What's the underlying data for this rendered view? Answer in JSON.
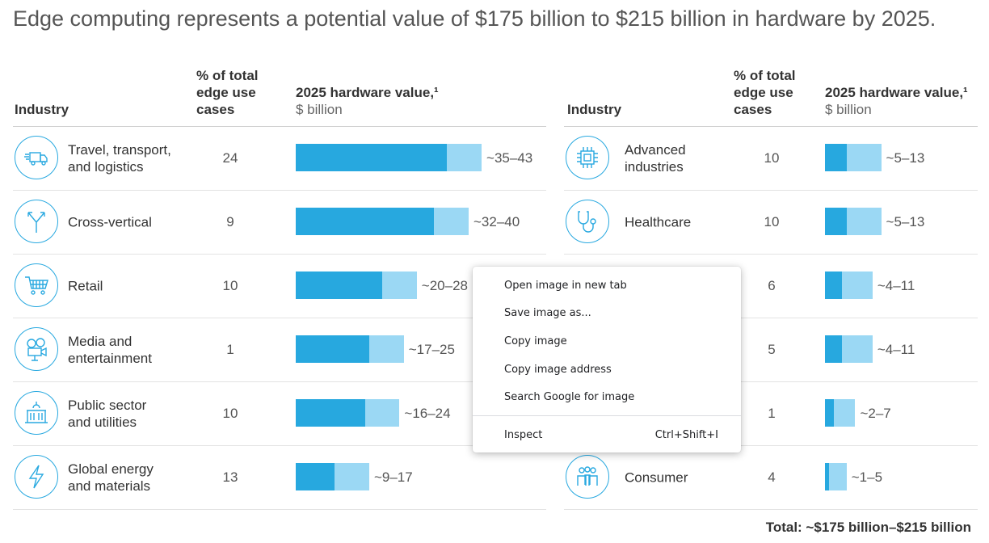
{
  "title": "Edge computing represents a potential value of $175 billion to $215 billion in hardware by 2025.",
  "headers": {
    "industry": "Industry",
    "pct_lines": [
      "% of total",
      "edge use",
      "cases"
    ],
    "value": "2025 hardware value,¹",
    "value_unit": "$ billion"
  },
  "colors": {
    "low": "#27a8df",
    "high": "#9bd8f4",
    "icon": "#29a9e0"
  },
  "left_rows": [
    {
      "name": "Travel, transport,\nand logistics",
      "pct": "24",
      "low": 35,
      "high": 43,
      "range": "~35–43",
      "icon": "truck-icon"
    },
    {
      "name": "Cross-vertical",
      "pct": "9",
      "low": 32,
      "high": 40,
      "range": "~32–40",
      "icon": "fork-arrows-icon"
    },
    {
      "name": "Retail",
      "pct": "10",
      "low": 20,
      "high": 28,
      "range": "~20–28",
      "icon": "shopping-cart-icon"
    },
    {
      "name": "Media and\nentertainment",
      "pct": "1",
      "low": 17,
      "high": 25,
      "range": "~17–25",
      "icon": "film-camera-icon"
    },
    {
      "name": "Public sector\nand utilities",
      "pct": "10",
      "low": 16,
      "high": 24,
      "range": "~16–24",
      "icon": "government-building-icon"
    },
    {
      "name": "Global energy\nand materials",
      "pct": "13",
      "low": 9,
      "high": 17,
      "range": "~9–17",
      "icon": "lightning-icon"
    }
  ],
  "right_rows": [
    {
      "name": "Advanced\nindustries",
      "pct": "10",
      "low": 5,
      "high": 13,
      "range": "~5–13",
      "icon": "chip-icon"
    },
    {
      "name": "Healthcare",
      "pct": "10",
      "low": 5,
      "high": 13,
      "range": "~5–13",
      "icon": "stethoscope-icon"
    },
    {
      "name": "",
      "pct": "6",
      "low": 4,
      "high": 11,
      "range": "~4–11",
      "icon": ""
    },
    {
      "name": "",
      "pct": "5",
      "low": 4,
      "high": 11,
      "range": "~4–11",
      "icon": ""
    },
    {
      "name": "",
      "pct": "1",
      "low": 2,
      "high": 7,
      "range": "~2–7",
      "icon": ""
    },
    {
      "name": "Consumer",
      "pct": "4",
      "low": 1,
      "high": 5,
      "range": "~1–5",
      "icon": "people-group-icon"
    }
  ],
  "total": "Total: ~$175 billion–$215 billion",
  "context_menu": {
    "items": [
      "Open image in new tab",
      "Save image as...",
      "Copy image",
      "Copy image address",
      "Search Google for image"
    ],
    "inspect_label": "Inspect",
    "inspect_shortcut": "Ctrl+Shift+I"
  }
}
